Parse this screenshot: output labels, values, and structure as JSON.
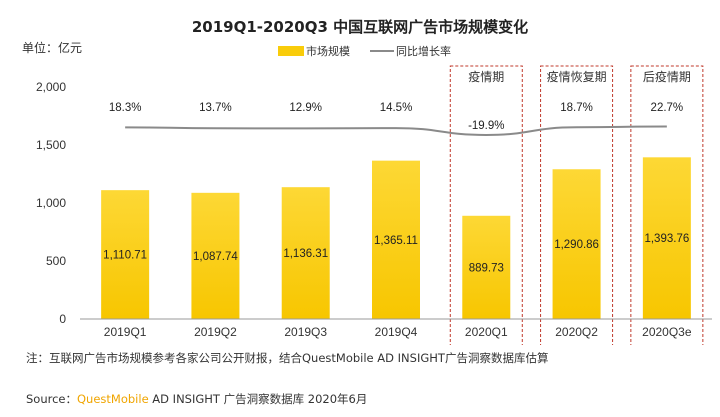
{
  "chart_data": {
    "type": "bar",
    "title": "2019Q1-2020Q3 中国互联网广告市场规模变化",
    "unit_label": "单位：亿元",
    "categories": [
      "2019Q1",
      "2019Q2",
      "2019Q3",
      "2019Q4",
      "2020Q1",
      "2020Q2",
      "2020Q3e"
    ],
    "series": [
      {
        "name": "市场规模",
        "type": "bar",
        "values": [
          1110.71,
          1087.74,
          1136.31,
          1365.11,
          889.73,
          1290.86,
          1393.76
        ],
        "labels": [
          "1,110.71",
          "1,087.74",
          "1,136.31",
          "1,365.11",
          "889.73",
          "1,290.86",
          "1,393.76"
        ],
        "color": "#f9cc0a"
      },
      {
        "name": "同比增长率",
        "type": "line",
        "values": [
          18.3,
          13.7,
          12.9,
          14.5,
          -19.9,
          18.7,
          22.7
        ],
        "labels": [
          "18.3%",
          "13.7%",
          "12.9%",
          "14.5%",
          "-19.9%",
          "18.7%",
          "22.7%"
        ],
        "color": "#8a8a8a"
      }
    ],
    "ylim": [
      0,
      2000
    ],
    "yticks": [
      0,
      500,
      1000,
      1500,
      2000
    ],
    "ytick_labels": [
      "0",
      "500",
      "1,000",
      "1,500",
      "2,000"
    ],
    "legend_position": "top-center",
    "grid": false,
    "annotations": [
      {
        "label": "疫情期",
        "category": "2020Q1"
      },
      {
        "label": "疫情恢复期",
        "category": "2020Q2"
      },
      {
        "label": "后疫情期",
        "category": "2020Q3e"
      }
    ]
  },
  "footnote": "注：互联网广告市场规模参考各家公司公开财报，结合QuestMobile AD INSIGHT广告洞察数据库估算",
  "source": {
    "prefix": "Source：",
    "brand": "QuestMobile",
    "rest": " AD INSIGHT 广告洞察数据库 2020年6月"
  }
}
